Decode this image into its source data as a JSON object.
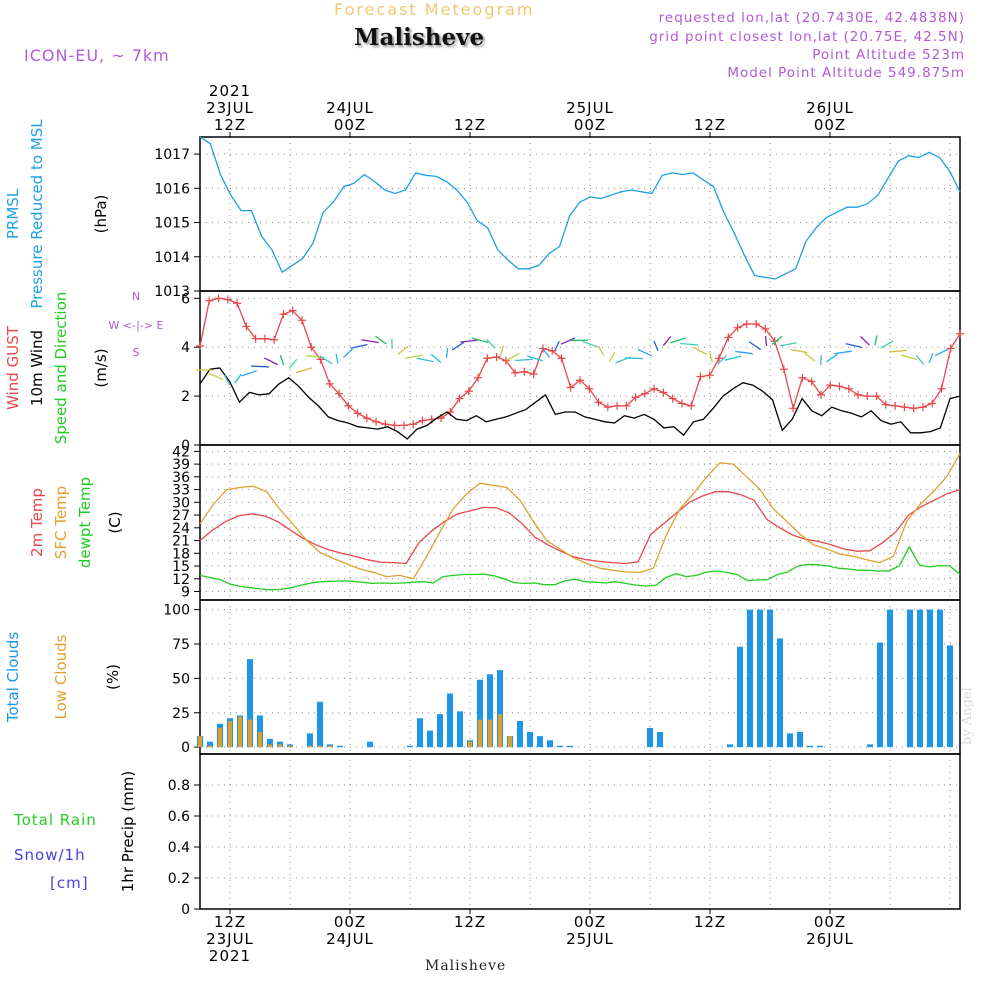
{
  "header": {
    "subtitle": "Forecast Meteogram",
    "station": "Malisheve",
    "model": "ICON-EU, ~ 7km",
    "requested": "requested lon,lat (20.7430E, 42.4838N)",
    "gridpoint": "grid point closest lon,lat (20.75E, 42.5N)",
    "point_alt": "Point Altitude 523m",
    "model_alt": "Model Point Altitude 549.875m",
    "footer_station": "Malisheve",
    "watermark": "by Angel"
  },
  "colors": {
    "pressure": "#1ea0e6",
    "gust": "#e8474a",
    "wind": "#000000",
    "temp": "#e8474a",
    "sfc": "#e0a030",
    "dew": "#22cc22",
    "clouds_total": "#1e96e6",
    "clouds_low": "#e0a030",
    "rain": "#22cc22",
    "snow": "#4444dd",
    "meta": "#b05ad8"
  },
  "time_axis": {
    "top_labels": [
      {
        "t": 3,
        "lines": [
          "2021",
          "23JUL",
          "12Z"
        ]
      },
      {
        "t": 15,
        "lines": [
          "24JUL",
          "00Z"
        ]
      },
      {
        "t": 27,
        "lines": [
          "12Z"
        ]
      },
      {
        "t": 39,
        "lines": [
          "25JUL",
          "00Z"
        ]
      },
      {
        "t": 51,
        "lines": [
          "12Z"
        ]
      },
      {
        "t": 63,
        "lines": [
          "26JUL",
          "00Z"
        ]
      }
    ],
    "bottom_labels": [
      {
        "t": 3,
        "lines": [
          "12Z",
          "23JUL",
          "2021"
        ]
      },
      {
        "t": 15,
        "lines": [
          "00Z",
          "24JUL"
        ]
      },
      {
        "t": 27,
        "lines": [
          "12Z"
        ]
      },
      {
        "t": 39,
        "lines": [
          "00Z",
          "25JUL"
        ]
      },
      {
        "t": 51,
        "lines": [
          "12Z"
        ]
      },
      {
        "t": 63,
        "lines": [
          "00Z",
          "26JUL"
        ]
      }
    ]
  },
  "chart_data": [
    {
      "type": "line",
      "panel": "pressure",
      "title_lines": [
        "PRMSL",
        "Pressure Reduced to MSL"
      ],
      "ylabel": "(hPa)",
      "ylim": [
        1013,
        1017.5
      ],
      "yticks": [
        1013,
        1014,
        1015,
        1016,
        1017
      ],
      "series": [
        {
          "values": [
            1017.5,
            1017.3,
            1016.4,
            1015.8,
            1015.35,
            1015.35,
            1014.6,
            1014.2,
            1013.55,
            1013.75,
            1013.95,
            1014.4,
            1015.3,
            1015.6,
            1016.05,
            1016.15,
            1016.4,
            1016.2,
            1015.95,
            1015.85,
            1015.95,
            1016.45,
            1016.38,
            1016.35,
            1016.2,
            1015.95,
            1015.6,
            1015.05,
            1014.85,
            1014.2,
            1013.9,
            1013.65,
            1013.65,
            1013.75,
            1014.1,
            1014.3,
            1015.2,
            1015.6,
            1015.75,
            1015.7,
            1015.8,
            1015.9,
            1015.95,
            1015.9,
            1015.85,
            1016.38,
            1016.45,
            1016.4,
            1016.45,
            1016.25,
            1016.05,
            1015.3,
            1014.7,
            1014.05,
            1013.45,
            1013.4,
            1013.35,
            1013.5,
            1013.65,
            1014.45,
            1014.85,
            1015.15,
            1015.3,
            1015.45,
            1015.45,
            1015.55,
            1015.8,
            1016.3,
            1016.8,
            1016.95,
            1016.9,
            1017.05,
            1016.9,
            1016.5,
            1015.9
          ]
        }
      ]
    },
    {
      "type": "line",
      "panel": "wind",
      "title_lines": [
        "Wind GUST",
        "10m Wind",
        "Speed and Direction"
      ],
      "ylabel": "(m/s)",
      "compass": [
        "N",
        "W <-|-> E",
        "S"
      ],
      "ylim": [
        0,
        6.3
      ],
      "yticks": [
        0,
        2,
        4,
        6
      ],
      "series": [
        {
          "values": [
            4.05,
            5.9,
            6.0,
            5.95,
            5.8,
            4.85,
            4.35,
            4.35,
            4.3,
            5.35,
            5.5,
            5.1,
            4.0,
            3.5,
            2.5,
            2.1,
            1.6,
            1.3,
            1.1,
            0.95,
            0.85,
            0.8,
            0.8,
            0.85,
            1.0,
            1.05,
            1.1,
            1.35,
            1.9,
            2.2,
            2.75,
            3.55,
            3.6,
            3.45,
            2.95,
            3.0,
            2.9,
            3.95,
            3.85,
            3.55,
            2.35,
            2.65,
            2.3,
            1.75,
            1.55,
            1.6,
            1.6,
            1.95,
            2.1,
            2.3,
            2.15,
            1.9,
            1.7,
            1.6,
            2.8,
            2.85,
            3.55,
            4.4,
            4.8,
            4.95,
            4.95,
            4.75,
            4.25,
            3.1,
            1.5,
            2.75,
            2.6,
            2.05,
            2.45,
            2.4,
            2.3,
            2.05,
            2.0,
            2.0,
            1.65,
            1.6,
            1.55,
            1.5,
            1.55,
            1.7,
            2.3,
            3.95,
            4.55
          ]
        },
        {
          "values": [
            2.5,
            3.1,
            3.15,
            2.6,
            1.75,
            2.15,
            2.05,
            2.1,
            2.5,
            2.75,
            2.4,
            1.95,
            1.6,
            1.15,
            1.0,
            0.9,
            0.75,
            0.7,
            0.65,
            0.75,
            0.55,
            0.25,
            0.65,
            0.8,
            1.1,
            1.35,
            1.05,
            1.0,
            1.2,
            0.95,
            1.05,
            1.15,
            1.3,
            1.45,
            1.75,
            2.05,
            1.25,
            1.35,
            1.35,
            1.15,
            1.05,
            0.95,
            0.9,
            1.2,
            1.1,
            1.25,
            1.05,
            0.7,
            0.75,
            0.4,
            0.95,
            1.05,
            1.5,
            2.0,
            2.3,
            2.55,
            2.45,
            2.2,
            1.85,
            0.6,
            1.05,
            1.9,
            1.4,
            1.2,
            1.55,
            1.4,
            1.3,
            1.15,
            1.4,
            1.0,
            0.85,
            0.95,
            0.5,
            0.5,
            0.55,
            0.7,
            1.9,
            2.0
          ]
        }
      ]
    },
    {
      "type": "line",
      "panel": "temperature",
      "title_lines": [
        "2m Temp",
        "SFC Temp",
        "dewpt Temp"
      ],
      "ylabel": "(C)",
      "ylim": [
        7,
        43.5
      ],
      "yticks": [
        9,
        12,
        15,
        18,
        21,
        24,
        27,
        30,
        33,
        36,
        39,
        42
      ],
      "series": [
        {
          "values": [
            21.0,
            23.5,
            25.5,
            26.8,
            27.3,
            26.8,
            25.5,
            23.5,
            21.5,
            20.0,
            18.8,
            18.0,
            17.3,
            16.5,
            15.9,
            15.8,
            15.6,
            20.5,
            23.3,
            25.5,
            27.3,
            28.0,
            28.8,
            28.7,
            27.5,
            25.0,
            21.8,
            20.0,
            18.5,
            17.2,
            16.5,
            16.1,
            15.8,
            15.6,
            16.0,
            22.5,
            25.0,
            27.5,
            30.0,
            31.5,
            32.5,
            32.5,
            31.8,
            30.5,
            26.0,
            24.0,
            22.3,
            21.3,
            20.8,
            20.0,
            19.0,
            18.5,
            18.6,
            20.5,
            23.0,
            27.0,
            29.0,
            30.5,
            32.0,
            33.0
          ]
        },
        {
          "values": [
            25.0,
            29.5,
            33.0,
            33.5,
            33.8,
            32.5,
            28.3,
            24.8,
            21.0,
            18.2,
            16.8,
            15.5,
            14.3,
            13.5,
            12.5,
            12.8,
            12.0,
            17.3,
            23.0,
            28.5,
            32.0,
            34.5,
            34.0,
            33.5,
            30.5,
            25.5,
            21.0,
            19.0,
            17.0,
            15.6,
            14.5,
            14.0,
            13.6,
            13.5,
            14.5,
            22.5,
            28.5,
            32.0,
            36.0,
            39.3,
            39.0,
            36.0,
            33.0,
            28.5,
            25.5,
            22.5,
            20.0,
            19.0,
            17.8,
            17.3,
            16.5,
            15.8,
            17.3,
            25.5,
            29.5,
            32.5,
            36.0,
            41.5
          ]
        },
        {
          "values": [
            12.8,
            12.3,
            11.8,
            10.7,
            10.2,
            9.9,
            9.6,
            9.4,
            9.5,
            9.9,
            10.5,
            11.0,
            11.3,
            11.4,
            11.5,
            11.4,
            11.2,
            10.9,
            11.0,
            10.9,
            11.0,
            11.2,
            11.3,
            11.0,
            12.5,
            12.8,
            13.0,
            13.0,
            13.1,
            12.7,
            12.0,
            11.1,
            10.9,
            11.0,
            10.6,
            10.6,
            11.5,
            11.9,
            11.3,
            11.2,
            11.0,
            11.3,
            10.9,
            10.5,
            10.3,
            10.5,
            12.3,
            13.2,
            12.5,
            12.8,
            13.6,
            13.8,
            13.5,
            13.0,
            11.6,
            11.7,
            11.8,
            13.0,
            13.6,
            15.0,
            15.4,
            15.3,
            15.0,
            14.5,
            14.3,
            14.0,
            14.0,
            13.8,
            13.9,
            15.0,
            19.5,
            15.2,
            14.8,
            15.1,
            15.0,
            13.0
          ]
        }
      ]
    },
    {
      "type": "bar",
      "panel": "clouds",
      "title_lines": [
        "Total Clouds",
        "Low Clouds"
      ],
      "ylabel": "(%)",
      "ylim": [
        -5,
        107
      ],
      "yticks": [
        0,
        25,
        50,
        75,
        100
      ],
      "x": [
        0,
        1,
        2,
        3,
        4,
        5,
        6,
        7,
        8,
        9,
        11,
        12,
        13,
        14,
        17,
        21,
        22,
        23,
        24,
        25,
        26,
        27,
        28,
        29,
        30,
        31,
        32,
        33,
        34,
        35,
        36,
        37,
        45,
        46,
        53,
        54,
        55,
        56,
        57,
        58,
        59,
        60,
        61,
        62,
        67,
        68,
        69,
        70,
        71,
        72,
        73,
        74,
        75,
        76
      ],
      "series": [
        {
          "values": [
            8,
            4,
            17,
            21,
            23,
            64,
            23,
            6,
            4,
            2,
            10,
            33,
            2,
            1,
            4,
            1,
            21,
            12,
            24,
            39,
            26,
            5,
            49,
            53,
            56,
            8,
            19,
            11,
            8,
            5,
            1,
            1,
            14,
            11,
            2,
            73,
            100,
            100,
            100,
            79,
            10,
            11,
            1,
            1,
            2,
            76,
            100,
            0,
            100,
            100,
            100,
            100,
            74,
            0
          ]
        },
        {
          "values": [
            8,
            1,
            14,
            19,
            22,
            20,
            11,
            2,
            2,
            1,
            1,
            1,
            1,
            0,
            0,
            0,
            0,
            0,
            0,
            0,
            0,
            4,
            20,
            20,
            24,
            8,
            0,
            0,
            0,
            0,
            0,
            0,
            0,
            0,
            0,
            0,
            0,
            0,
            0,
            0,
            0,
            0,
            0,
            0,
            0,
            0,
            0,
            0,
            0,
            0,
            0,
            0,
            0,
            0
          ]
        }
      ]
    },
    {
      "type": "line",
      "panel": "precip",
      "title_lines": [
        "Total Rain",
        "Snow/1h",
        "[cm]"
      ],
      "ylabel": "1hr Precip (mm)",
      "ylim": [
        0,
        1
      ],
      "yticks": [
        0,
        0.2,
        0.4,
        0.6,
        0.8
      ],
      "series": []
    }
  ]
}
